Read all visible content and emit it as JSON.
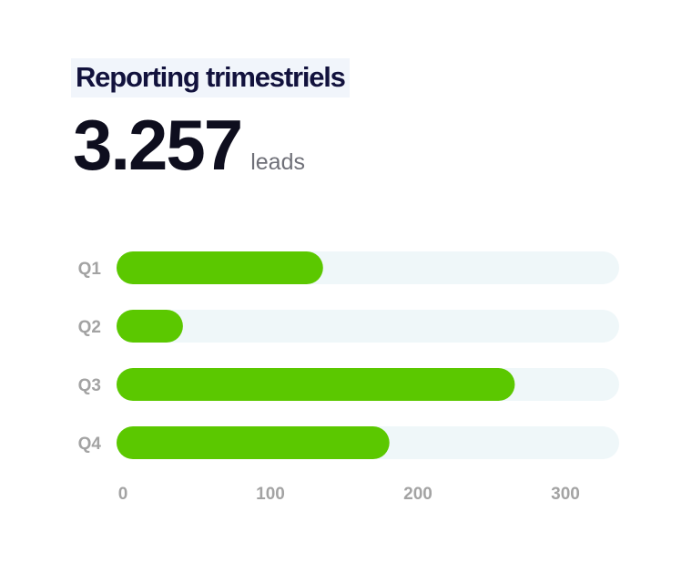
{
  "header": {
    "title": "Reporting trimestriels",
    "kpi_value": "3.257",
    "kpi_unit": "leads"
  },
  "colors": {
    "bar": "#5bc800",
    "track": "#eff7f9",
    "tick_label": "#a3a3a3",
    "title": "#12123d",
    "title_bg": "#f1f5fb"
  },
  "chart_data": {
    "type": "bar",
    "orientation": "horizontal",
    "categories": [
      "Q1",
      "Q2",
      "Q3",
      "Q4"
    ],
    "values": [
      140,
      45,
      270,
      185
    ],
    "xlim": [
      0,
      320
    ],
    "xticks": [
      0,
      100,
      200,
      300
    ],
    "title": "",
    "xlabel": "",
    "ylabel": "",
    "grid": false,
    "legend": "none"
  }
}
